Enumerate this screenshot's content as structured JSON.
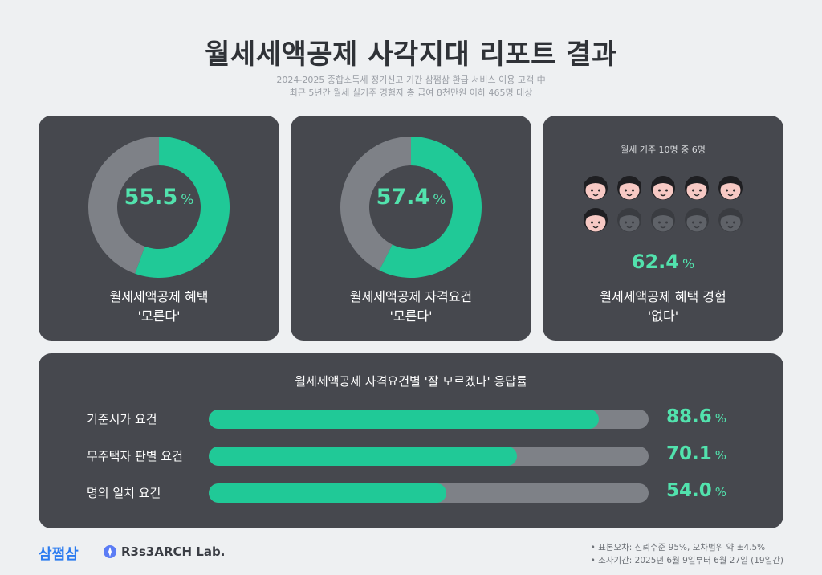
{
  "title": "월세세액공제 사각지대 리포트 결과",
  "subtitle_lines": [
    "2024-2025 종합소득세 정기신고 기간 삼쩜삼 환급 서비스 이용 고객 中",
    "최근 5년간 월세 실거주 경험자 총 급여 8천만원 이하 465명 대상"
  ],
  "colors": {
    "accent": "#20c997",
    "accent_text": "#52e2ad",
    "card_bg": "#46484e",
    "track": "#7e8187",
    "page_bg": "#eef0f2"
  },
  "cards": [
    {
      "value": "55.5",
      "unit": "%",
      "label_line1": "월세세액공제 혜택",
      "label_line2": "'모른다'"
    },
    {
      "value": "57.4",
      "unit": "%",
      "label_line1": "월세세액공제 자격요건",
      "label_line2": "'모른다'"
    },
    {
      "caption": "월세 거주 10명 중 6명",
      "value": "62.4",
      "unit": "%",
      "label_line1": "월세세액공제 혜택 경험",
      "label_line2": "'없다'",
      "people_total": 10,
      "people_highlighted": 6
    }
  ],
  "bars_panel": {
    "title": "월세세액공제 자격요건별 '잘 모르겠다' 응답률",
    "unit": "%"
  },
  "chart_data": [
    {
      "type": "pie",
      "categories": [
        "모른다",
        ""
      ],
      "values": [
        55.5,
        44.5
      ],
      "title": ""
    },
    {
      "type": "pie",
      "categories": [
        "모른다",
        ""
      ],
      "values": [
        57.4,
        42.6
      ],
      "title": ""
    },
    {
      "type": "bar",
      "title": "월세세액공제 자격요건별 '잘 모르겠다' 응답률",
      "categories": [
        "기준시가 요건",
        "무주택자 판별 요건",
        "명의 일치 요건"
      ],
      "values": [
        88.6,
        70.1,
        54.0
      ],
      "value_labels": [
        "88.6",
        "70.1",
        "54.0"
      ],
      "orientation": "horizontal",
      "ylim": [
        0,
        100
      ]
    }
  ],
  "footer": {
    "logo_text": "삼쩜삼",
    "lab_logo": "R3s3ARCH Lab.",
    "notes": [
      "• 표본오차: 신뢰수준 95%, 오차범위 약 ±4.5%",
      "• 조사기간: 2025년 6월 9일부터 6월 27일 (19일간)"
    ]
  }
}
